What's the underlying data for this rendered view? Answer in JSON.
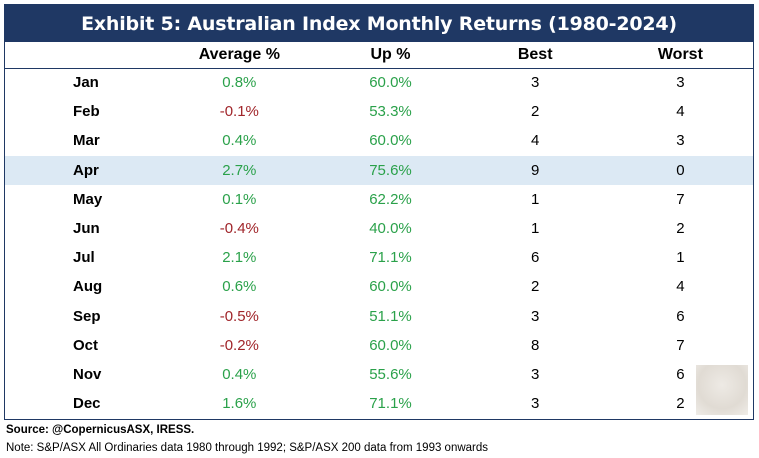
{
  "title": "Exhibit 5: Australian Index Monthly Returns (1980-2024)",
  "columns": [
    "",
    "Average %",
    "Up %",
    "Best",
    "Worst"
  ],
  "rows": [
    {
      "month": "Jan",
      "avg": "0.8%",
      "avg_sign": "pos",
      "up": "60.0%",
      "best": "3",
      "worst": "3",
      "highlight": false
    },
    {
      "month": "Feb",
      "avg": "-0.1%",
      "avg_sign": "neg",
      "up": "53.3%",
      "best": "2",
      "worst": "4",
      "highlight": false
    },
    {
      "month": "Mar",
      "avg": "0.4%",
      "avg_sign": "pos",
      "up": "60.0%",
      "best": "4",
      "worst": "3",
      "highlight": false
    },
    {
      "month": "Apr",
      "avg": "2.7%",
      "avg_sign": "pos",
      "up": "75.6%",
      "best": "9",
      "worst": "0",
      "highlight": true
    },
    {
      "month": "May",
      "avg": "0.1%",
      "avg_sign": "pos",
      "up": "62.2%",
      "best": "1",
      "worst": "7",
      "highlight": false
    },
    {
      "month": "Jun",
      "avg": "-0.4%",
      "avg_sign": "neg",
      "up": "40.0%",
      "best": "1",
      "worst": "2",
      "highlight": false
    },
    {
      "month": "Jul",
      "avg": "2.1%",
      "avg_sign": "pos",
      "up": "71.1%",
      "best": "6",
      "worst": "1",
      "highlight": false
    },
    {
      "month": "Aug",
      "avg": "0.6%",
      "avg_sign": "pos",
      "up": "60.0%",
      "best": "2",
      "worst": "4",
      "highlight": false
    },
    {
      "month": "Sep",
      "avg": "-0.5%",
      "avg_sign": "neg",
      "up": "51.1%",
      "best": "3",
      "worst": "6",
      "highlight": false
    },
    {
      "month": "Oct",
      "avg": "-0.2%",
      "avg_sign": "neg",
      "up": "60.0%",
      "best": "8",
      "worst": "7",
      "highlight": false
    },
    {
      "month": "Nov",
      "avg": "0.4%",
      "avg_sign": "pos",
      "up": "55.6%",
      "best": "3",
      "worst": "6",
      "highlight": false
    },
    {
      "month": "Dec",
      "avg": "1.6%",
      "avg_sign": "pos",
      "up": "71.1%",
      "best": "3",
      "worst": "2",
      "highlight": false
    }
  ],
  "source": "Source: @CopernicusASX, IRESS.",
  "note": "Note: S&P/ASX All Ordinaries data 1980 through 1992; S&P/ASX 200 data from 1993 onwards",
  "colors": {
    "header_bg": "#1f3864",
    "positive": "#2aa14a",
    "negative": "#a0252a",
    "highlight_row": "#dce9f4"
  }
}
